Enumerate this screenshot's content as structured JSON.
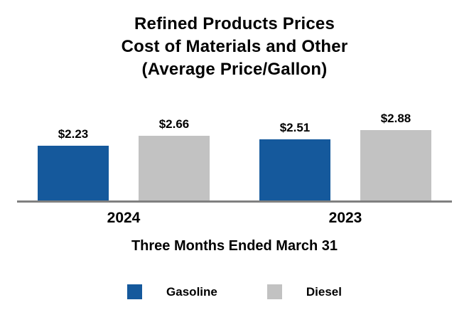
{
  "title": {
    "line1": "Refined Products Prices",
    "line2": "Cost of Materials and Other",
    "line3": "(Average Price/Gallon)"
  },
  "chart_data": {
    "type": "bar",
    "categories": [
      "2024",
      "2023"
    ],
    "series": [
      {
        "name": "Gasoline",
        "color": "#15599C",
        "values": [
          2.23,
          2.51
        ]
      },
      {
        "name": "Diesel",
        "color": "#C2C2C2",
        "values": [
          2.66,
          2.88
        ]
      }
    ],
    "data_labels": {
      "y2024": {
        "gasoline": "$2.23",
        "diesel": "$2.66"
      },
      "y2023": {
        "gasoline": "$2.51",
        "diesel": "$2.88"
      }
    },
    "xlabel": "Three Months Ended March 31",
    "ylabel": "",
    "ylim": [
      0,
      3.2
    ],
    "grid": false,
    "legend_position": "bottom",
    "axis_line_color": "#808080"
  },
  "legend": {
    "items": [
      {
        "label": "Gasoline",
        "color": "#15599C"
      },
      {
        "label": "Diesel",
        "color": "#C2C2C2"
      }
    ]
  }
}
